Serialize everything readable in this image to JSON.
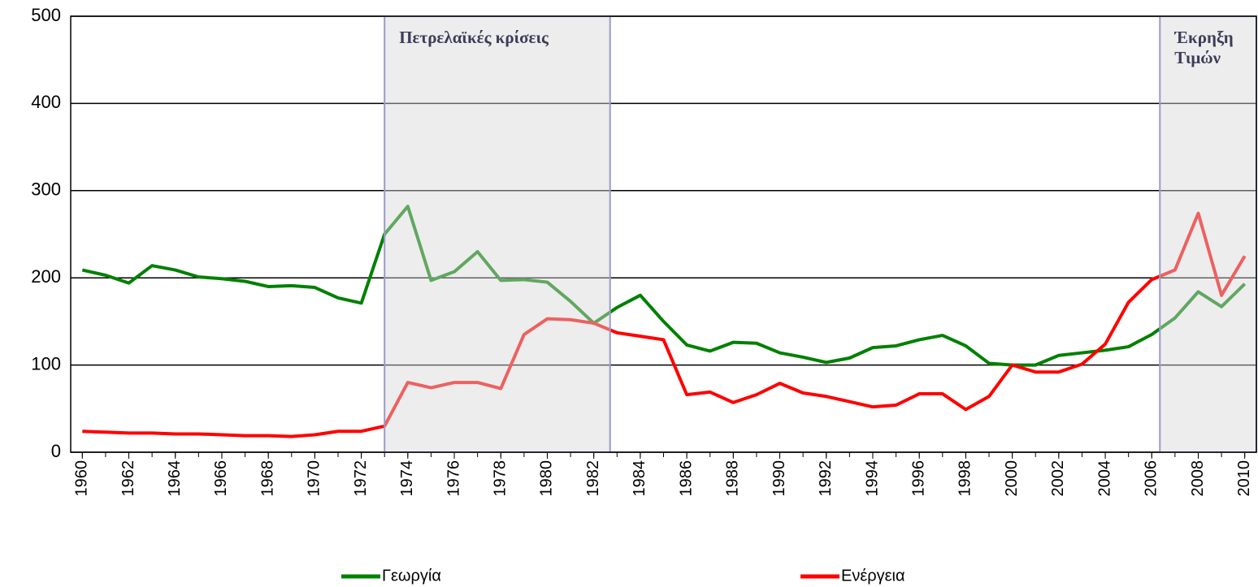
{
  "chart_data": {
    "type": "line",
    "x": [
      1960,
      1961,
      1962,
      1963,
      1964,
      1965,
      1966,
      1967,
      1968,
      1969,
      1970,
      1971,
      1972,
      1973,
      1974,
      1975,
      1976,
      1977,
      1978,
      1979,
      1980,
      1981,
      1982,
      1983,
      1984,
      1985,
      1986,
      1987,
      1988,
      1989,
      1990,
      1991,
      1992,
      1993,
      1994,
      1995,
      1996,
      1997,
      1998,
      1999,
      2000,
      2001,
      2002,
      2003,
      2004,
      2005,
      2006,
      2007,
      2008,
      2009,
      2010
    ],
    "series": [
      {
        "name": "Γεωργία",
        "color": "#008000",
        "values": [
          209,
          203,
          194,
          214,
          209,
          201,
          199,
          196,
          190,
          191,
          189,
          177,
          171,
          250,
          282,
          197,
          207,
          230,
          197,
          198,
          195,
          173,
          148,
          166,
          180,
          150,
          123,
          116,
          126,
          125,
          114,
          109,
          103,
          108,
          120,
          122,
          129,
          134,
          122,
          102,
          100,
          100,
          111,
          114,
          117,
          121,
          135,
          154,
          184,
          167,
          193
        ]
      },
      {
        "name": "Ενέργεια",
        "color": "#ff0000",
        "values": [
          24,
          23,
          22,
          22,
          21,
          21,
          20,
          19,
          19,
          18,
          20,
          24,
          24,
          30,
          80,
          74,
          80,
          80,
          73,
          135,
          153,
          152,
          148,
          137,
          133,
          129,
          66,
          69,
          57,
          66,
          79,
          68,
          64,
          58,
          52,
          54,
          67,
          67,
          49,
          64,
          100,
          92,
          92,
          101,
          124,
          172,
          198,
          209,
          274,
          180,
          225
        ]
      }
    ],
    "xlim": [
      1959.5,
      2010.5
    ],
    "xticks": [
      1960,
      1962,
      1964,
      1966,
      1968,
      1970,
      1972,
      1974,
      1976,
      1978,
      1980,
      1982,
      1984,
      1986,
      1988,
      1990,
      1992,
      1994,
      1996,
      1998,
      2000,
      2002,
      2004,
      2006,
      2008,
      2010
    ],
    "ylim": [
      0,
      500
    ],
    "yticks": [
      0,
      100,
      200,
      300,
      400,
      500
    ],
    "grid": true,
    "legend": "bottom",
    "shaded_periods": [
      {
        "x0": 1973,
        "x1": 1982.7,
        "label": "Πετρελαϊκές κρίσεις"
      },
      {
        "x0": 2006.35,
        "x1": 2010.5,
        "label": "Έκρηξη Τιμών"
      }
    ]
  }
}
